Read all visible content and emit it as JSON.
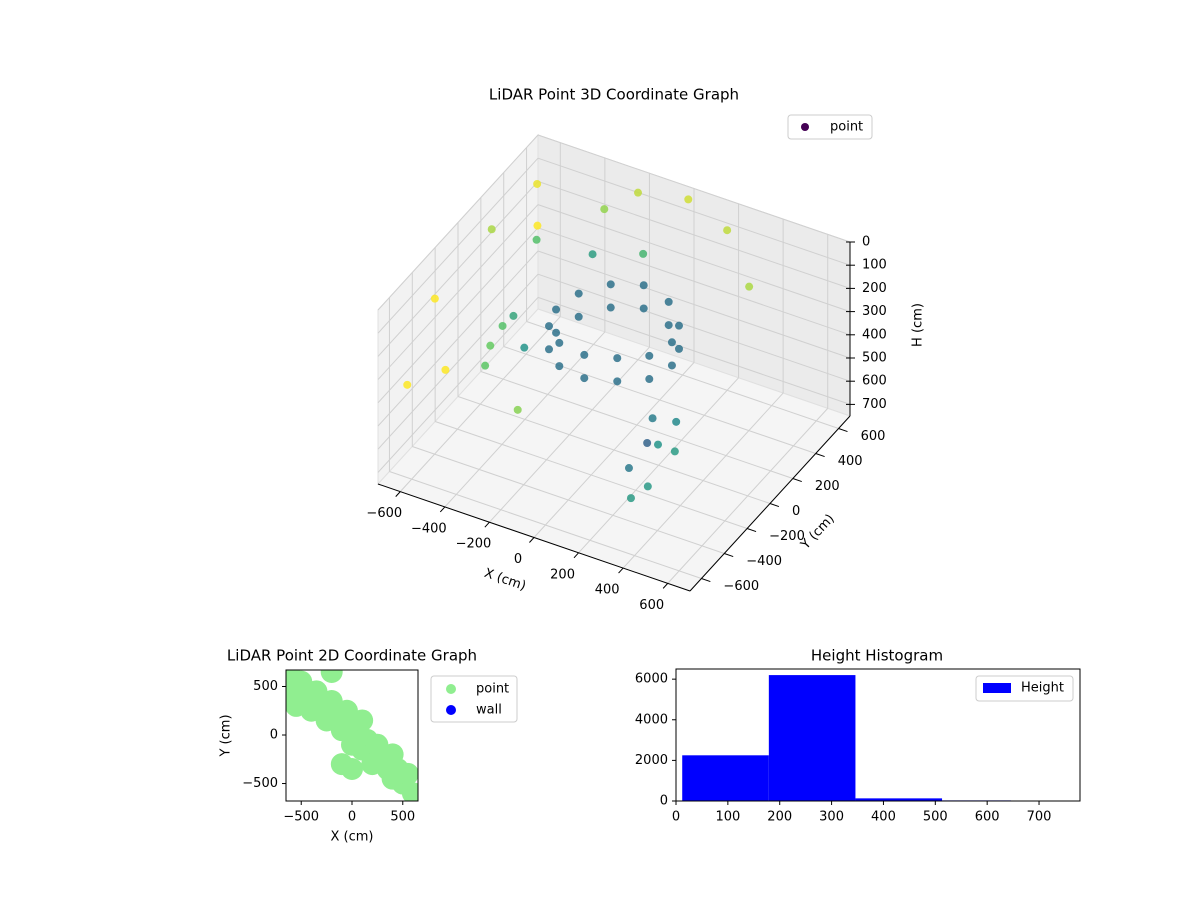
{
  "chart_data": [
    {
      "type": "scatter3d",
      "title": "LiDAR Point 3D Coordinate Graph",
      "xlabel": "X (cm)",
      "ylabel": "Y (cm)",
      "zlabel": "H (cm)",
      "xlim": [
        -700,
        700
      ],
      "ylim": [
        -700,
        700
      ],
      "zlim": [
        750,
        0
      ],
      "xticks": [
        {
          "value": -600,
          "label": "−600"
        },
        {
          "value": -400,
          "label": "−400"
        },
        {
          "value": -200,
          "label": "−200"
        },
        0,
        200,
        400,
        600
      ],
      "yticks": [
        {
          "value": -600,
          "label": "−600"
        },
        {
          "value": -400,
          "label": "−400"
        },
        {
          "value": -200,
          "label": "−200"
        },
        0,
        200,
        400,
        600
      ],
      "zticks": [
        0,
        100,
        200,
        300,
        400,
        500,
        600,
        700
      ],
      "colormap": "viridis",
      "legend": "upper right",
      "grid": true,
      "series": [
        {
          "name": "point",
          "x": [
            260,
            225,
            130,
            0,
            -130,
            -225,
            -260,
            -225,
            -130,
            0,
            130,
            225,
            260,
            225,
            130,
            0,
            -130,
            -225,
            -260,
            -225,
            -130,
            0,
            130,
            225,
            250,
            300,
            200,
            280,
            350,
            230,
            320,
            180,
            -650,
            -600,
            -550,
            -500,
            -450,
            -400,
            -620,
            -300,
            -350,
            -200,
            -500,
            -250,
            -150,
            -600,
            -450,
            0,
            -100,
            200,
            350,
            -300
          ],
          "y": [
            0,
            130,
            225,
            260,
            225,
            130,
            0,
            -130,
            -225,
            -260,
            -225,
            -130,
            0,
            130,
            225,
            260,
            225,
            130,
            0,
            -130,
            -225,
            -260,
            -225,
            -130,
            -150,
            -200,
            -100,
            -250,
            -150,
            -300,
            -80,
            -220,
            -300,
            100,
            400,
            -500,
            200,
            -100,
            -600,
            500,
            -400,
            600,
            0,
            300,
            -550,
            500,
            -250,
            650,
            450,
            600,
            500,
            -200
          ],
          "z": [
            200,
            210,
            190,
            180,
            200,
            220,
            230,
            220,
            210,
            200,
            190,
            200,
            300,
            310,
            290,
            280,
            300,
            320,
            330,
            320,
            310,
            300,
            290,
            300,
            450,
            520,
            600,
            680,
            560,
            720,
            480,
            650,
            150,
            50,
            0,
            300,
            100,
            250,
            350,
            80,
            200,
            30,
            380,
            150,
            330,
            250,
            400,
            20,
            180,
            60,
            200,
            300
          ]
        }
      ]
    },
    {
      "type": "scatter",
      "title": "LiDAR Point 2D Coordinate Graph",
      "xlabel": "X (cm)",
      "ylabel": "Y (cm)",
      "xlim": [
        -650,
        650
      ],
      "ylim": [
        -680,
        670
      ],
      "xticks": [
        {
          "value": -500,
          "label": "−500"
        },
        0,
        500
      ],
      "yticks": [
        {
          "value": -500,
          "label": "−500"
        },
        0,
        500
      ],
      "legend": "outside right",
      "series": [
        {
          "name": "point",
          "color": "#90ee90",
          "x": [
            -620,
            -550,
            -500,
            -450,
            -400,
            -350,
            -300,
            -250,
            -200,
            -150,
            -100,
            -50,
            0,
            0,
            50,
            100,
            100,
            150,
            200,
            200,
            250,
            300,
            350,
            400,
            400,
            450,
            500,
            550,
            600,
            -100,
            0,
            -600,
            -200
          ],
          "y": [
            450,
            300,
            550,
            400,
            250,
            450,
            300,
            150,
            350,
            200,
            50,
            250,
            100,
            -100,
            0,
            -150,
            150,
            -50,
            -200,
            -300,
            -100,
            -250,
            -350,
            -200,
            -450,
            -350,
            -500,
            -400,
            -600,
            -300,
            -350,
            600,
            650
          ]
        },
        {
          "name": "wall",
          "color": "#0000ff",
          "x": [],
          "y": []
        }
      ]
    },
    {
      "type": "hist",
      "title": "Height Histogram",
      "xlim": [
        0,
        779
      ],
      "ylim": [
        0,
        6500
      ],
      "xticks": [
        0,
        100,
        200,
        300,
        400,
        500,
        600,
        700
      ],
      "yticks": [
        0,
        2000,
        4000,
        6000
      ],
      "legend": "upper right",
      "series": [
        {
          "name": "Height",
          "color": "#0000ff",
          "bins": [
            12,
            179,
            346,
            513,
            646,
            779
          ],
          "values": [
            2250,
            6200,
            130,
            30,
            20
          ]
        }
      ]
    }
  ]
}
